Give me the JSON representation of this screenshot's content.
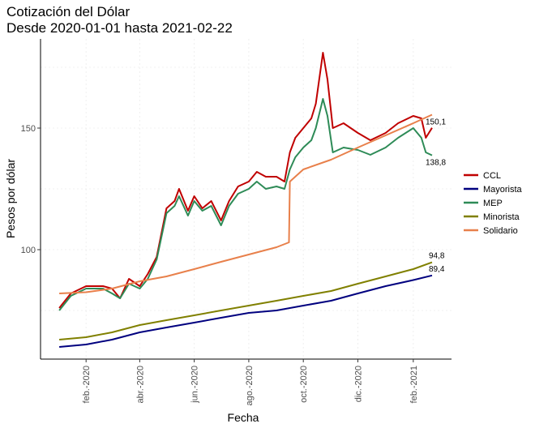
{
  "chart_data": {
    "type": "line",
    "title": "Cotización del Dólar",
    "subtitle": "Desde 2020-01-01 hasta 2021-02-22",
    "xlabel": "Fecha",
    "ylabel": "Pesos por dólar",
    "x_range": [
      "2020-01-01",
      "2021-02-22"
    ],
    "ylim": [
      55,
      185
    ],
    "y_ticks": [
      100,
      150
    ],
    "x_ticks": [
      {
        "date": "2020-02-01",
        "label": "feb.-2020"
      },
      {
        "date": "2020-04-01",
        "label": "abr.-2020"
      },
      {
        "date": "2020-06-01",
        "label": "jun.-2020"
      },
      {
        "date": "2020-08-01",
        "label": "ago.-2020"
      },
      {
        "date": "2020-10-01",
        "label": "oct.-2020"
      },
      {
        "date": "2020-12-01",
        "label": "dic.-2020"
      },
      {
        "date": "2021-02-01",
        "label": "feb.-2021"
      }
    ],
    "grid": true,
    "legend_position": "right",
    "series": [
      {
        "name": "CCL",
        "color": "#c00000",
        "points": [
          [
            "2020-01-02",
            76
          ],
          [
            "2020-01-15",
            82
          ],
          [
            "2020-02-01",
            85
          ],
          [
            "2020-02-20",
            85
          ],
          [
            "2020-03-01",
            84
          ],
          [
            "2020-03-10",
            80
          ],
          [
            "2020-03-20",
            88
          ],
          [
            "2020-04-01",
            85
          ],
          [
            "2020-04-10",
            90
          ],
          [
            "2020-04-20",
            97
          ],
          [
            "2020-05-01",
            117
          ],
          [
            "2020-05-10",
            120
          ],
          [
            "2020-05-15",
            125
          ],
          [
            "2020-05-25",
            116
          ],
          [
            "2020-06-01",
            122
          ],
          [
            "2020-06-10",
            117
          ],
          [
            "2020-06-20",
            120
          ],
          [
            "2020-07-01",
            112
          ],
          [
            "2020-07-10",
            120
          ],
          [
            "2020-07-20",
            126
          ],
          [
            "2020-08-01",
            128
          ],
          [
            "2020-08-10",
            132
          ],
          [
            "2020-08-20",
            130
          ],
          [
            "2020-09-01",
            130
          ],
          [
            "2020-09-10",
            128
          ],
          [
            "2020-09-16",
            140
          ],
          [
            "2020-09-22",
            146
          ],
          [
            "2020-10-01",
            150
          ],
          [
            "2020-10-10",
            154
          ],
          [
            "2020-10-15",
            160
          ],
          [
            "2020-10-23",
            181
          ],
          [
            "2020-10-28",
            170
          ],
          [
            "2020-11-03",
            150
          ],
          [
            "2020-11-15",
            152
          ],
          [
            "2020-12-01",
            148
          ],
          [
            "2020-12-15",
            145
          ],
          [
            "2021-01-01",
            148
          ],
          [
            "2021-01-15",
            152
          ],
          [
            "2021-02-01",
            155
          ],
          [
            "2021-02-10",
            154
          ],
          [
            "2021-02-15",
            146
          ],
          [
            "2021-02-22",
            150.1
          ]
        ]
      },
      {
        "name": "Mayorista",
        "color": "#00007f",
        "points": [
          [
            "2020-01-02",
            60
          ],
          [
            "2020-02-01",
            61
          ],
          [
            "2020-03-01",
            63
          ],
          [
            "2020-04-01",
            66
          ],
          [
            "2020-05-01",
            68
          ],
          [
            "2020-06-01",
            70
          ],
          [
            "2020-07-01",
            72
          ],
          [
            "2020-08-01",
            74
          ],
          [
            "2020-09-01",
            75
          ],
          [
            "2020-10-01",
            77
          ],
          [
            "2020-11-01",
            79
          ],
          [
            "2020-12-01",
            82
          ],
          [
            "2021-01-01",
            85
          ],
          [
            "2021-02-01",
            87.5
          ],
          [
            "2021-02-22",
            89.4
          ]
        ]
      },
      {
        "name": "MEP",
        "color": "#2e8b57",
        "points": [
          [
            "2020-01-02",
            75
          ],
          [
            "2020-01-15",
            81
          ],
          [
            "2020-02-01",
            84
          ],
          [
            "2020-02-20",
            84
          ],
          [
            "2020-03-01",
            82
          ],
          [
            "2020-03-10",
            80
          ],
          [
            "2020-03-20",
            86
          ],
          [
            "2020-04-01",
            84
          ],
          [
            "2020-04-10",
            88
          ],
          [
            "2020-04-20",
            96
          ],
          [
            "2020-05-01",
            115
          ],
          [
            "2020-05-10",
            118
          ],
          [
            "2020-05-15",
            122
          ],
          [
            "2020-05-25",
            114
          ],
          [
            "2020-06-01",
            120
          ],
          [
            "2020-06-10",
            116
          ],
          [
            "2020-06-20",
            118
          ],
          [
            "2020-07-01",
            110
          ],
          [
            "2020-07-10",
            118
          ],
          [
            "2020-07-20",
            123
          ],
          [
            "2020-08-01",
            125
          ],
          [
            "2020-08-10",
            128
          ],
          [
            "2020-08-20",
            125
          ],
          [
            "2020-09-01",
            126
          ],
          [
            "2020-09-10",
            125
          ],
          [
            "2020-09-16",
            133
          ],
          [
            "2020-09-22",
            138
          ],
          [
            "2020-10-01",
            142
          ],
          [
            "2020-10-10",
            145
          ],
          [
            "2020-10-15",
            150
          ],
          [
            "2020-10-23",
            162
          ],
          [
            "2020-10-28",
            155
          ],
          [
            "2020-11-03",
            140
          ],
          [
            "2020-11-15",
            142
          ],
          [
            "2020-12-01",
            141
          ],
          [
            "2020-12-15",
            139
          ],
          [
            "2021-01-01",
            142
          ],
          [
            "2021-01-15",
            146
          ],
          [
            "2021-02-01",
            150
          ],
          [
            "2021-02-10",
            146
          ],
          [
            "2021-02-15",
            140
          ],
          [
            "2021-02-22",
            138.8
          ]
        ]
      },
      {
        "name": "Minorista",
        "color": "#808000",
        "points": [
          [
            "2020-01-02",
            63
          ],
          [
            "2020-02-01",
            64
          ],
          [
            "2020-03-01",
            66
          ],
          [
            "2020-04-01",
            69
          ],
          [
            "2020-05-01",
            71
          ],
          [
            "2020-06-01",
            73
          ],
          [
            "2020-07-01",
            75
          ],
          [
            "2020-08-01",
            77
          ],
          [
            "2020-09-01",
            79
          ],
          [
            "2020-10-01",
            81
          ],
          [
            "2020-11-01",
            83
          ],
          [
            "2020-12-01",
            86
          ],
          [
            "2021-01-01",
            89
          ],
          [
            "2021-02-01",
            92
          ],
          [
            "2021-02-22",
            94.8
          ]
        ]
      },
      {
        "name": "Solidario",
        "color": "#e8804b",
        "points": [
          [
            "2020-01-02",
            82
          ],
          [
            "2020-02-01",
            82.5
          ],
          [
            "2020-03-01",
            84
          ],
          [
            "2020-04-01",
            87
          ],
          [
            "2020-05-01",
            89
          ],
          [
            "2020-06-01",
            92
          ],
          [
            "2020-07-01",
            95
          ],
          [
            "2020-08-01",
            98
          ],
          [
            "2020-09-01",
            101
          ],
          [
            "2020-09-15",
            103
          ],
          [
            "2020-09-16",
            128
          ],
          [
            "2020-10-01",
            133
          ],
          [
            "2020-11-01",
            137
          ],
          [
            "2020-12-01",
            142
          ],
          [
            "2021-01-01",
            147
          ],
          [
            "2021-02-01",
            152
          ],
          [
            "2021-02-22",
            155.5
          ]
        ]
      }
    ],
    "end_labels": [
      {
        "series": "CCL",
        "text": "150,1"
      },
      {
        "series": "MEP",
        "text": "138,8"
      },
      {
        "series": "Minorista",
        "text": "94,8"
      },
      {
        "series": "Mayorista",
        "text": "89,4"
      }
    ]
  }
}
